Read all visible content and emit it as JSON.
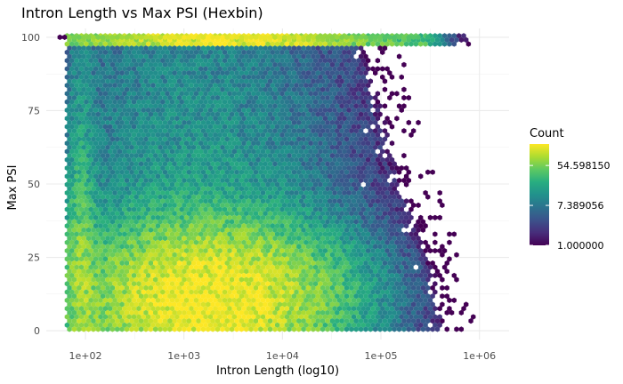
{
  "chart_data": {
    "type": "hexbin",
    "title": "Intron Length vs Max PSI (Hexbin)",
    "xlabel": "Intron Length (log10)",
    "ylabel": "Max PSI",
    "x_scale": "log10",
    "xlim": [
      40,
      2000000
    ],
    "ylim": [
      -3,
      103
    ],
    "x_ticks": [
      100,
      1000,
      10000,
      100000,
      1000000
    ],
    "x_tick_labels": [
      "1e+02",
      "1e+03",
      "1e+04",
      "1e+05",
      "1e+06"
    ],
    "y_ticks": [
      0,
      25,
      50,
      75,
      100
    ],
    "y_tick_labels": [
      "0",
      "25",
      "50",
      "75",
      "100"
    ],
    "grid": true,
    "legend": {
      "title": "Count",
      "position": "right",
      "scale": "log",
      "breaks": [
        1.0,
        7.389056,
        54.59815
      ],
      "labels": [
        "1.000000",
        "7.389056",
        "54.598150"
      ],
      "range": [
        1,
        160
      ]
    },
    "colormap": [
      "#440154",
      "#472d7b",
      "#3b528b",
      "#2c728e",
      "#21918c",
      "#28ae80",
      "#5ec962",
      "#addc30",
      "#fde725"
    ],
    "density_peaks": [
      {
        "log10_x": 3.3,
        "y": 12,
        "count": 140
      },
      {
        "log10_x": 3.5,
        "y": 100,
        "count": 120
      },
      {
        "log10_x": 2.0,
        "y": 25,
        "count": 60
      }
    ]
  }
}
